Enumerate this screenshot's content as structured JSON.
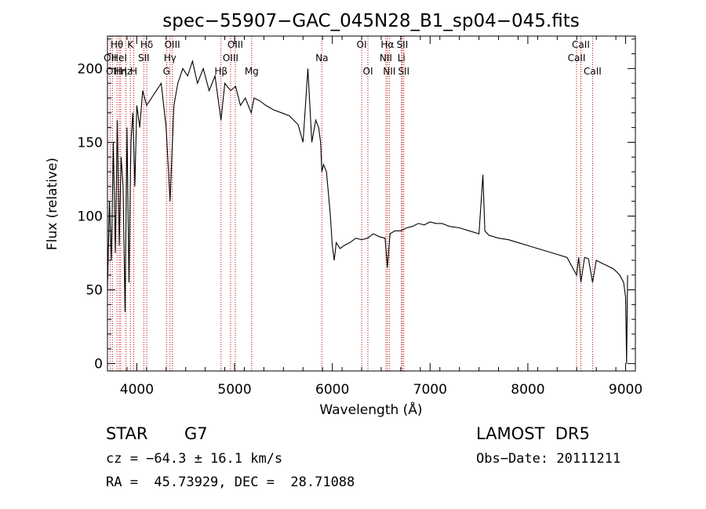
{
  "chart_data": {
    "type": "line",
    "title": "spec−55907−GAC_045N28_B1_sp04−045.fits",
    "xlabel": "Wavelength (Å)",
    "ylabel": "Flux (relative)",
    "xlim": [
      3700,
      9100
    ],
    "ylim": [
      -5,
      222
    ],
    "xticks": [
      4000,
      5000,
      6000,
      7000,
      8000,
      9000
    ],
    "yticks": [
      0,
      50,
      100,
      150,
      200
    ],
    "grid": false,
    "series": [
      {
        "x": [
          3700,
          3720,
          3740,
          3760,
          3780,
          3800,
          3820,
          3840,
          3860,
          3880,
          3900,
          3920,
          3940,
          3960,
          3980,
          4000,
          4030,
          4060,
          4100,
          4150,
          4200,
          4250,
          4300,
          4340,
          4380,
          4420,
          4470,
          4520,
          4570,
          4620,
          4680,
          4740,
          4800,
          4861,
          4900,
          4960,
          5010,
          5060,
          5110,
          5170,
          5200,
          5260,
          5320,
          5400,
          5480,
          5560,
          5650,
          5700,
          5750,
          5790,
          5830,
          5860,
          5880,
          5893,
          5910,
          5940,
          5980,
          6000,
          6020,
          6040,
          6080,
          6120,
          6180,
          6240,
          6300,
          6360,
          6420,
          6480,
          6540,
          6563,
          6590,
          6640,
          6700,
          6760,
          6820,
          6880,
          6940,
          7000,
          7060,
          7120,
          7200,
          7300,
          7400,
          7500,
          7540,
          7560,
          7600,
          7700,
          7800,
          7900,
          8000,
          8100,
          8200,
          8300,
          8400,
          8498,
          8520,
          8542,
          8580,
          8620,
          8662,
          8700,
          8760,
          8820,
          8880,
          8940,
          8980,
          9000,
          9010,
          9020
        ],
        "y": [
          50,
          110,
          70,
          150,
          75,
          165,
          80,
          140,
          120,
          35,
          160,
          55,
          150,
          170,
          120,
          175,
          160,
          185,
          175,
          180,
          185,
          190,
          160,
          110,
          175,
          190,
          200,
          195,
          205,
          190,
          200,
          185,
          195,
          165,
          190,
          185,
          188,
          175,
          180,
          170,
          180,
          178,
          175,
          172,
          170,
          168,
          162,
          150,
          200,
          150,
          165,
          160,
          150,
          130,
          135,
          130,
          100,
          80,
          70,
          82,
          78,
          80,
          82,
          85,
          84,
          85,
          88,
          86,
          85,
          65,
          88,
          90,
          90,
          92,
          93,
          95,
          94,
          96,
          95,
          95,
          93,
          92,
          90,
          88,
          128,
          90,
          87,
          85,
          84,
          82,
          80,
          78,
          76,
          74,
          72,
          60,
          72,
          55,
          72,
          71,
          55,
          70,
          68,
          66,
          64,
          60,
          55,
          45,
          0,
          60
        ]
      }
    ],
    "line_markers": [
      {
        "wavelength": 3727,
        "label": "OII",
        "row": 1
      },
      {
        "wavelength": 3750,
        "label": "OII",
        "row": 2
      },
      {
        "wavelength": 3797,
        "label": "Hθ",
        "row": 0
      },
      {
        "wavelength": 3820,
        "label": "HeI",
        "row": 1
      },
      {
        "wavelength": 3835,
        "label": "Hη",
        "row": 2
      },
      {
        "wavelength": 3889,
        "label": "Hz",
        "row": 2
      },
      {
        "wavelength": 3934,
        "label": "K",
        "row": 0
      },
      {
        "wavelength": 3969,
        "label": "H",
        "row": 2
      },
      {
        "wavelength": 4072,
        "label": "SII",
        "row": 1
      },
      {
        "wavelength": 4102,
        "label": "Hδ",
        "row": 0
      },
      {
        "wavelength": 4304,
        "label": "G",
        "row": 2
      },
      {
        "wavelength": 4340,
        "label": "Hγ",
        "row": 1
      },
      {
        "wavelength": 4363,
        "label": "OIII",
        "row": 0
      },
      {
        "wavelength": 4861,
        "label": "Hβ",
        "row": 2
      },
      {
        "wavelength": 4959,
        "label": "OIII",
        "row": 1
      },
      {
        "wavelength": 5007,
        "label": "OIII",
        "row": 0
      },
      {
        "wavelength": 5175,
        "label": "Mg",
        "row": 2
      },
      {
        "wavelength": 5893,
        "label": "Na",
        "row": 1
      },
      {
        "wavelength": 6300,
        "label": "OI",
        "row": 0
      },
      {
        "wavelength": 6364,
        "label": "OI",
        "row": 2
      },
      {
        "wavelength": 6548,
        "label": "NII",
        "row": 1
      },
      {
        "wavelength": 6563,
        "label": "Hα",
        "row": 0
      },
      {
        "wavelength": 6583,
        "label": "NII",
        "row": 2
      },
      {
        "wavelength": 6707,
        "label": "Li",
        "row": 1
      },
      {
        "wavelength": 6716,
        "label": "SII",
        "row": 0
      },
      {
        "wavelength": 6731,
        "label": "SII",
        "row": 2
      },
      {
        "wavelength": 8498,
        "label": "CaII",
        "row": 1
      },
      {
        "wavelength": 8542,
        "label": "CaII",
        "row": 0
      },
      {
        "wavelength": 8662,
        "label": "CaII",
        "row": 2
      }
    ],
    "colors": {
      "spectrum": "#000000",
      "marker": "#c00000",
      "axes": "#000000"
    }
  },
  "footer": {
    "object_class": "STAR",
    "subclass": "G7",
    "survey": "LAMOST  DR5",
    "cz": "cz = −64.3 ± 16.1 km/s",
    "obs_date": "Obs−Date: 20111211",
    "coords": "RA =  45.73929, DEC =  28.71088"
  }
}
